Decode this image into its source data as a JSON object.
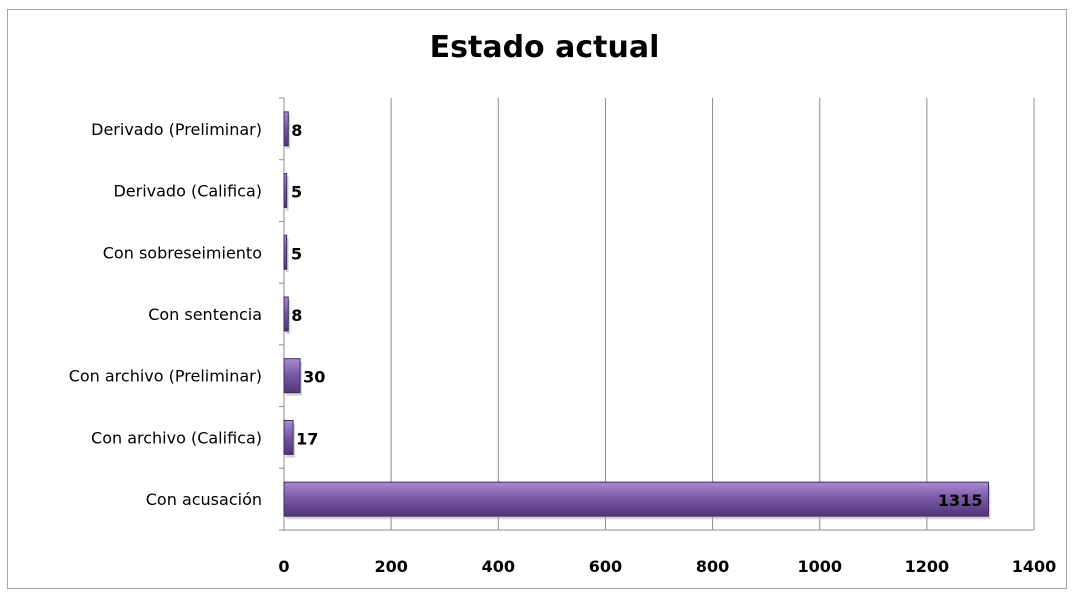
{
  "chart_data": {
    "type": "bar",
    "orientation": "horizontal",
    "title": "Estado actual",
    "categories": [
      "Con acusación",
      "Con archivo (Califica)",
      "Con archivo (Preliminar)",
      "Con sentencia",
      "Con sobreseimiento",
      "Derivado (Califica)",
      "Derivado (Preliminar)"
    ],
    "values": [
      1315,
      17,
      30,
      8,
      5,
      5,
      8
    ],
    "xlim": [
      0,
      1400
    ],
    "xticks": [
      0,
      200,
      400,
      600,
      800,
      1000,
      1200,
      1400
    ],
    "grid": "vertical",
    "legend": "none",
    "bar_color": "#7b5ba8",
    "bar_color_light": "#a88bd0",
    "bar_color_dark": "#4f3478"
  }
}
